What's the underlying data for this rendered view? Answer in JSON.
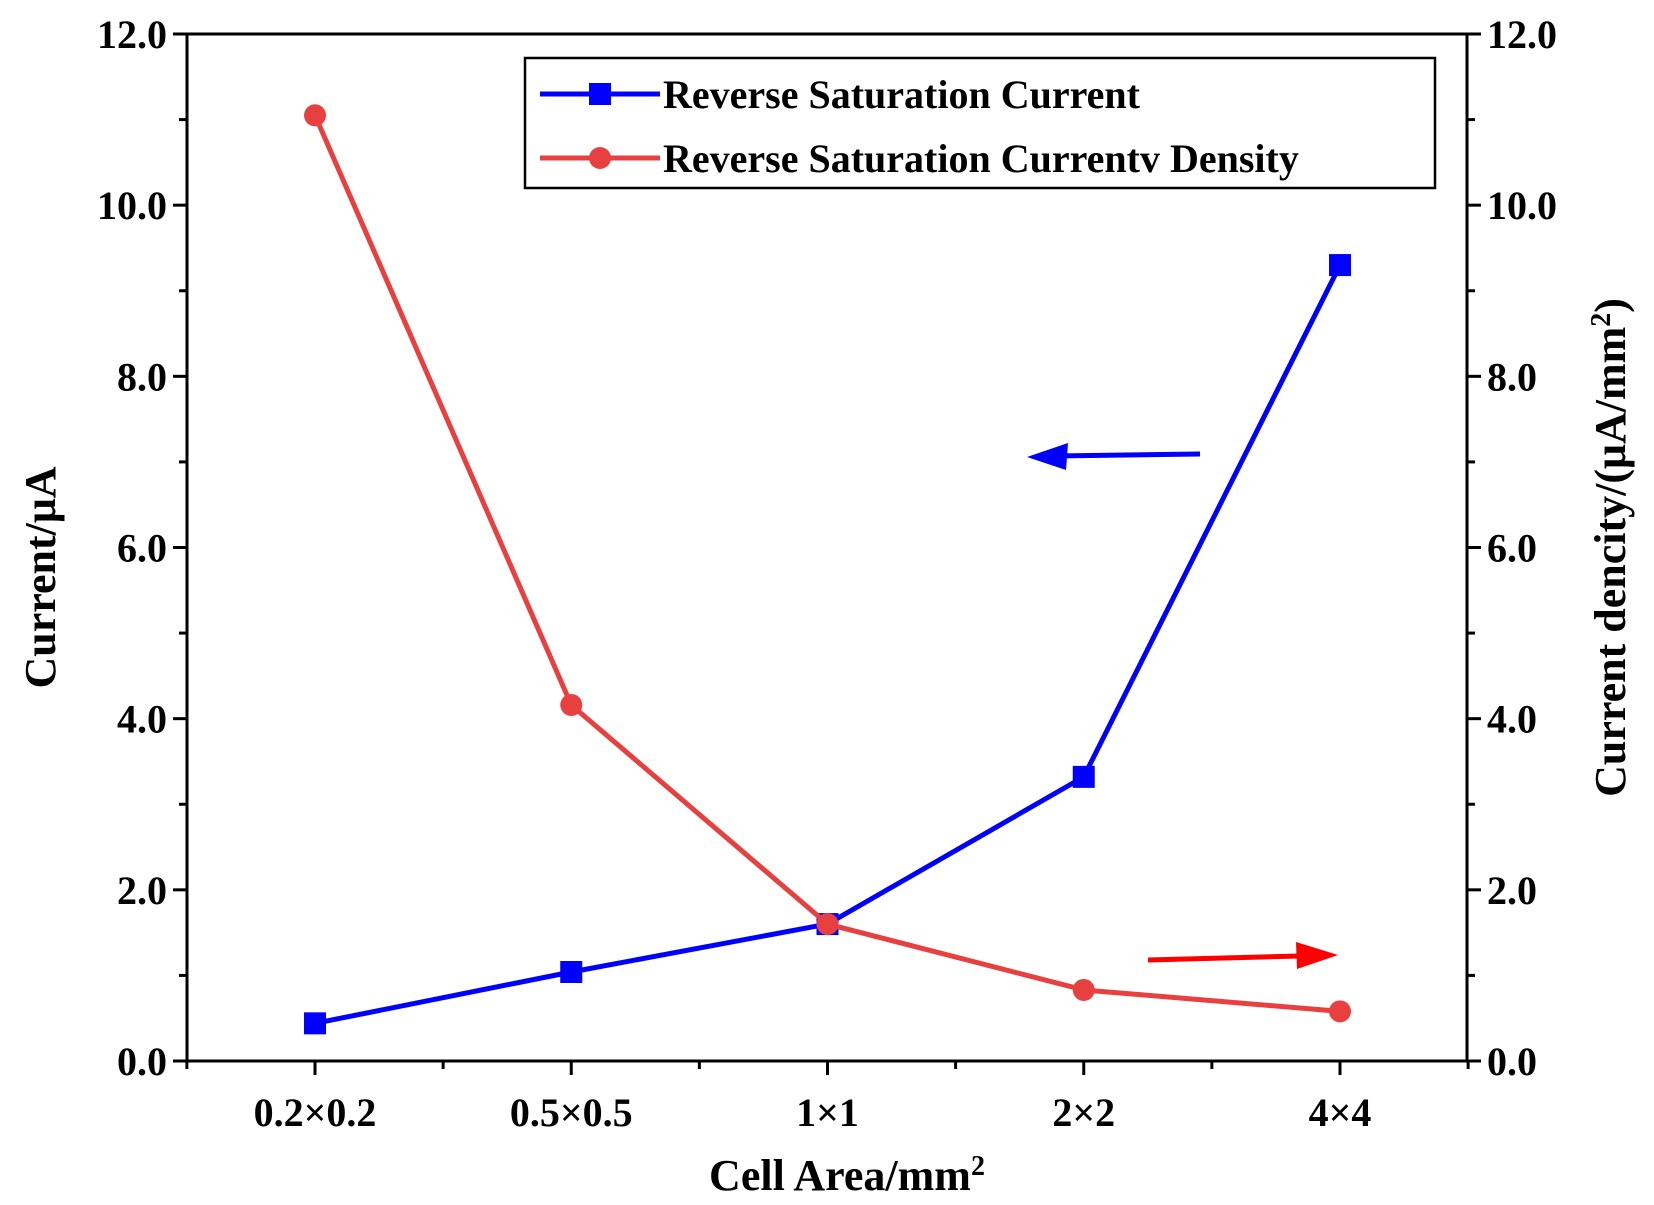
{
  "chart_data": {
    "type": "line",
    "xlabel": "Cell Area/mm",
    "xlabel_sup": "2",
    "ylabel_left": "Current/μA",
    "ylabel_right_main": "Current dencity/(μA/mm",
    "ylabel_right_sup": "2",
    "ylabel_right_close": ")",
    "categories": [
      "0.2×0.2",
      "0.5×0.5",
      "1×1",
      "2×2",
      "4×4"
    ],
    "ylim_left": [
      0,
      12
    ],
    "ylim_right": [
      0,
      12
    ],
    "yticks_left": [
      "0.0",
      "2.0",
      "4.0",
      "6.0",
      "8.0",
      "10.0",
      "12.0"
    ],
    "yticks_right": [
      "0.0",
      "2.0",
      "4.0",
      "6.0",
      "8.0",
      "10.0",
      "12.0"
    ],
    "legend_position": "top-right",
    "series": [
      {
        "name": "Reverse Saturation Current",
        "axis": "left",
        "marker": "square",
        "color": "#0000ff",
        "values": [
          0.44,
          1.04,
          1.6,
          3.32,
          9.3
        ]
      },
      {
        "name": "Reverse Saturation Currentv Density",
        "axis": "right",
        "marker": "circle",
        "color": "#e8403f",
        "values": [
          11.05,
          4.16,
          1.6,
          0.83,
          0.58
        ]
      }
    ],
    "annotations": [
      {
        "type": "arrow",
        "direction": "left",
        "color": "#0000ff",
        "points_to": "left axis"
      },
      {
        "type": "arrow",
        "direction": "right",
        "color": "#ff0000",
        "points_to": "right axis"
      }
    ]
  }
}
